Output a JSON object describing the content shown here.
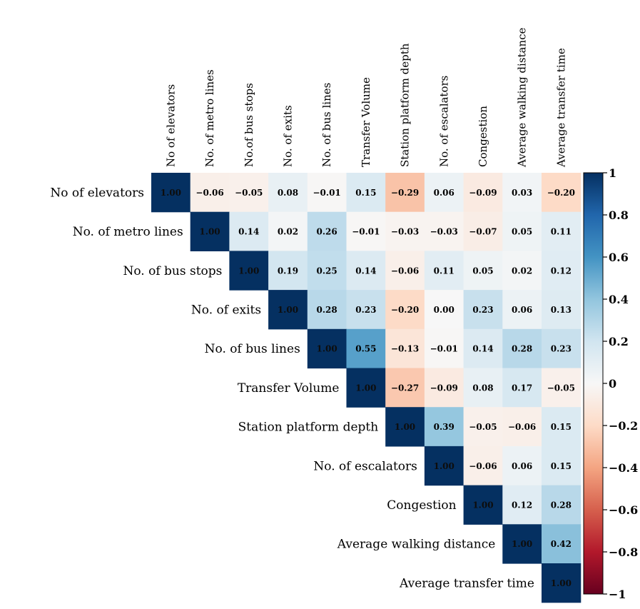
{
  "chart_data": {
    "type": "heatmap",
    "variables": [
      "No of elevators",
      "No. of metro lines",
      "No. of bus stops",
      "No. of exits",
      "No. of bus lines",
      "Transfer Volume",
      "Station platform depth",
      "No. of escalators",
      "Congestion",
      "Average walking distance",
      "Average transfer time"
    ],
    "row_labels": [
      "No of elevators",
      "No. of metro lines",
      "No. of bus stops",
      "No. of exits",
      "No. of bus lines",
      "Transfer Volume",
      "Station platform depth",
      "No. of escalators",
      "Congestion",
      "Average walking distance",
      "Average transfer time"
    ],
    "column_labels": [
      "No of elevators",
      "No. of metro lines",
      "No.of bus stops",
      "No. of exits",
      "No. of bus lines",
      "Transfer Volume",
      "Station platform depth",
      "No. of escalators",
      "Congestion",
      "Average walking distance",
      "Average transfer time"
    ],
    "layout": "upper-triangle",
    "value_labels": [
      [
        "1.00",
        "−0.06",
        "−0.05",
        "0.08",
        "−0.01",
        "0.15",
        "−0.29",
        "0.06",
        "−0.09",
        "0.03",
        "−0.20"
      ],
      [
        "1.00",
        "0.14",
        "0.02",
        "0.26",
        "−0.01",
        "−0.03",
        "−0.03",
        "−0.07",
        "0.05",
        "0.11"
      ],
      [
        "1.00",
        "0.19",
        "0.25",
        "0.14",
        "−0.06",
        "0.11",
        "0.05",
        "0.02",
        "0.12"
      ],
      [
        "1.00",
        "0.28",
        "0.23",
        "−0.20",
        "0.00",
        "0.23",
        "0.06",
        "0.13"
      ],
      [
        "1.00",
        "0.55",
        "−0.13",
        "−0.01",
        "0.14",
        "0.28",
        "0.23"
      ],
      [
        "1.00",
        "−0.27",
        "−0.09",
        "0.08",
        "0.17",
        "−0.05"
      ],
      [
        "1.00",
        "0.39",
        "−0.05",
        "−0.06",
        "0.15"
      ],
      [
        "1.00",
        "−0.06",
        "0.06",
        "0.15"
      ],
      [
        "1.00",
        "0.12",
        "0.28"
      ],
      [
        "1.00",
        "0.42"
      ],
      [
        "1.00"
      ]
    ],
    "colorbar": {
      "range": [
        -1,
        1
      ],
      "ticks": [
        1,
        0.8,
        0.6,
        0.4,
        0.2,
        0,
        -0.2,
        -0.4,
        -0.6,
        -0.8,
        -1
      ],
      "tick_labels": [
        "1",
        "0.8",
        "0.6",
        "0.4",
        "0.2",
        "0",
        "−0.2",
        "−0.4",
        "−0.6",
        "−0.8",
        "−1"
      ],
      "placement": "right",
      "colormap": "RdBu"
    },
    "grid": false,
    "legend": "none"
  }
}
